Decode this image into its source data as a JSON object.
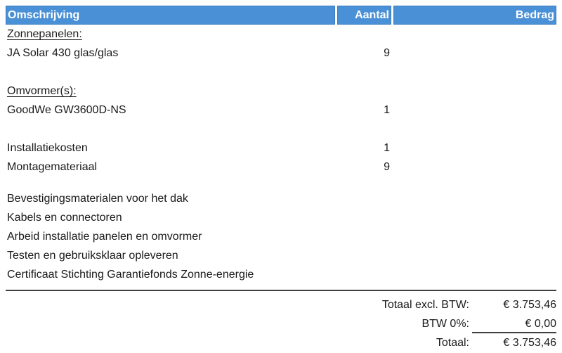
{
  "colors": {
    "header_bg": "#4a90d6",
    "header_border": "#3a7cbe",
    "text": "#1a1a1a",
    "rule": "#3f3f3f"
  },
  "table": {
    "columns": {
      "description": "Omschrijving",
      "quantity": "Aantal",
      "amount": "Bedrag"
    },
    "rows": [
      {
        "description": "Zonnepanelen:",
        "quantity": "",
        "amount": ""
      },
      {
        "description": "JA Solar 430 glas/glas",
        "quantity": "9",
        "amount": ""
      },
      {
        "description": "Omvormer(s):",
        "quantity": "",
        "amount": ""
      },
      {
        "description": "GoodWe GW3600D-NS",
        "quantity": "1",
        "amount": ""
      },
      {
        "description": "Installatiekosten",
        "quantity": "1",
        "amount": ""
      },
      {
        "description": "Montagemateriaal",
        "quantity": "9",
        "amount": ""
      },
      {
        "description": "Bevestigingsmaterialen voor het dak",
        "quantity": "",
        "amount": ""
      },
      {
        "description": "Kabels en connectoren",
        "quantity": "",
        "amount": ""
      },
      {
        "description": "Arbeid installatie panelen en omvormer",
        "quantity": "",
        "amount": ""
      },
      {
        "description": "Testen en gebruiksklaar opleveren",
        "quantity": "",
        "amount": ""
      },
      {
        "description": "Certificaat Stichting Garantiefonds Zonne-energie",
        "quantity": "",
        "amount": ""
      }
    ]
  },
  "totals": [
    {
      "label": "Totaal excl. BTW:",
      "value": "€ 3.753,46"
    },
    {
      "label": "BTW 0%:",
      "value": "€ 0,00"
    },
    {
      "label": "Totaal:",
      "value": "€ 3.753,46"
    }
  ]
}
